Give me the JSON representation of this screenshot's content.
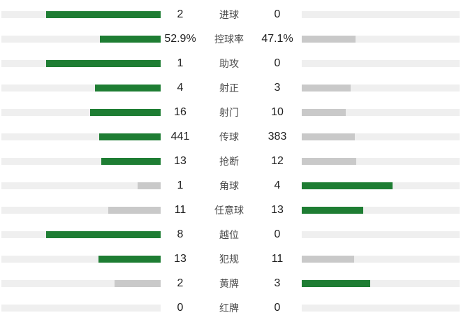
{
  "colors": {
    "highlight_green": "#1e7d33",
    "muted_gray": "#c9c9c9",
    "track_gray": "#efefef",
    "value_text": "#1f1f1f",
    "label_text": "#4a4a4a"
  },
  "chart_data": {
    "type": "bar",
    "orientation": "horizontal-diverging",
    "title": "",
    "legend": "none",
    "grid": false,
    "categories": [
      "进球",
      "控球率",
      "助攻",
      "射正",
      "射门",
      "传球",
      "抢断",
      "角球",
      "任意球",
      "越位",
      "犯规",
      "黄牌",
      "红牌"
    ],
    "series": [
      {
        "name": "left",
        "values": [
          2,
          52.9,
          1,
          4,
          16,
          441,
          13,
          1,
          11,
          8,
          13,
          2,
          0
        ],
        "display": [
          "2",
          "52.9%",
          "1",
          "4",
          "16",
          "441",
          "13",
          "1",
          "11",
          "8",
          "13",
          "2",
          "0"
        ]
      },
      {
        "name": "right",
        "values": [
          0,
          47.1,
          0,
          3,
          10,
          383,
          12,
          4,
          13,
          0,
          11,
          3,
          0
        ],
        "display": [
          "0",
          "47.1%",
          "0",
          "3",
          "10",
          "383",
          "12",
          "4",
          "13",
          "0",
          "11",
          "3",
          "0"
        ]
      }
    ],
    "bar_scale_note": "bar width proportional to value / row sum, max 72% of track",
    "highlight_color": "#1e7d33",
    "muted_color": "#c9c9c9"
  }
}
